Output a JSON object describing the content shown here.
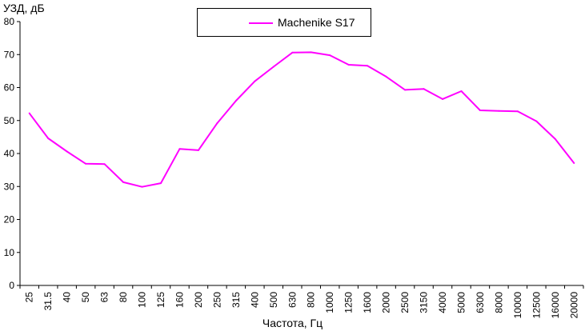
{
  "chart_data": {
    "type": "line",
    "ylabel": "УЗД, дБ",
    "xlabel": "Частота, Гц",
    "ylim": [
      0,
      80
    ],
    "yticks": [
      0,
      10,
      20,
      30,
      40,
      50,
      60,
      70,
      80
    ],
    "categories": [
      "25",
      "31.5",
      "40",
      "50",
      "63",
      "80",
      "100",
      "125",
      "160",
      "200",
      "250",
      "315",
      "400",
      "500",
      "630",
      "800",
      "1000",
      "1250",
      "1600",
      "2000",
      "2500",
      "3150",
      "4000",
      "5000",
      "6300",
      "8000",
      "10000",
      "12500",
      "16000",
      "20000"
    ],
    "series": [
      {
        "name": "Machenike S17",
        "color": "#ff00ff",
        "values": [
          52.2,
          44.6,
          40.6,
          36.9,
          36.8,
          31.3,
          29.9,
          31.0,
          41.4,
          41.0,
          49.2,
          56.0,
          61.9,
          66.3,
          70.6,
          70.7,
          69.8,
          66.9,
          66.6,
          63.3,
          59.3,
          59.6,
          56.5,
          58.9,
          53.1,
          52.9,
          52.8,
          49.8,
          44.4,
          37.1
        ]
      }
    ],
    "grid": false,
    "legend": "top-center"
  }
}
